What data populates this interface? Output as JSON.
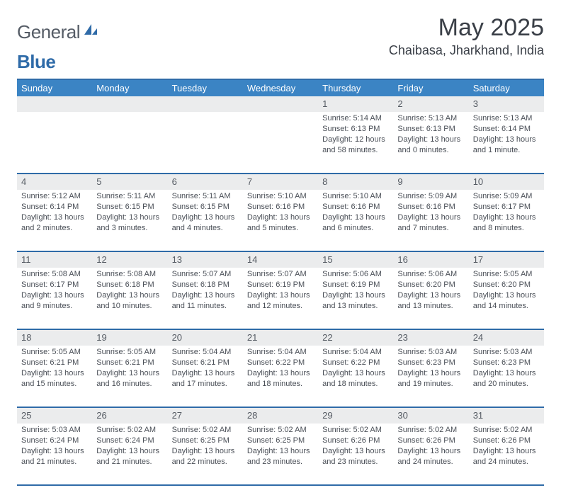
{
  "logo": {
    "part1": "General",
    "part2": "Blue"
  },
  "title": "May 2025",
  "location": "Chaibasa, Jharkhand, India",
  "colors": {
    "header_bg": "#3b84c4",
    "rule": "#2f6ba8",
    "daynum_bg": "#ebeced",
    "text": "#4a4f57",
    "title_text": "#3a3f47",
    "logo_gray": "#555c66"
  },
  "fonts": {
    "title_pt": 34,
    "location_pt": 18,
    "dayhead_pt": 13,
    "daynum_pt": 13,
    "info_pt": 11
  },
  "daynames": [
    "Sunday",
    "Monday",
    "Tuesday",
    "Wednesday",
    "Thursday",
    "Friday",
    "Saturday"
  ],
  "weeks": [
    [
      {
        "n": "",
        "sr": "",
        "ss": "",
        "dl": ""
      },
      {
        "n": "",
        "sr": "",
        "ss": "",
        "dl": ""
      },
      {
        "n": "",
        "sr": "",
        "ss": "",
        "dl": ""
      },
      {
        "n": "",
        "sr": "",
        "ss": "",
        "dl": ""
      },
      {
        "n": "1",
        "sr": "Sunrise: 5:14 AM",
        "ss": "Sunset: 6:13 PM",
        "dl": "Daylight: 12 hours and 58 minutes."
      },
      {
        "n": "2",
        "sr": "Sunrise: 5:13 AM",
        "ss": "Sunset: 6:13 PM",
        "dl": "Daylight: 13 hours and 0 minutes."
      },
      {
        "n": "3",
        "sr": "Sunrise: 5:13 AM",
        "ss": "Sunset: 6:14 PM",
        "dl": "Daylight: 13 hours and 1 minute."
      }
    ],
    [
      {
        "n": "4",
        "sr": "Sunrise: 5:12 AM",
        "ss": "Sunset: 6:14 PM",
        "dl": "Daylight: 13 hours and 2 minutes."
      },
      {
        "n": "5",
        "sr": "Sunrise: 5:11 AM",
        "ss": "Sunset: 6:15 PM",
        "dl": "Daylight: 13 hours and 3 minutes."
      },
      {
        "n": "6",
        "sr": "Sunrise: 5:11 AM",
        "ss": "Sunset: 6:15 PM",
        "dl": "Daylight: 13 hours and 4 minutes."
      },
      {
        "n": "7",
        "sr": "Sunrise: 5:10 AM",
        "ss": "Sunset: 6:16 PM",
        "dl": "Daylight: 13 hours and 5 minutes."
      },
      {
        "n": "8",
        "sr": "Sunrise: 5:10 AM",
        "ss": "Sunset: 6:16 PM",
        "dl": "Daylight: 13 hours and 6 minutes."
      },
      {
        "n": "9",
        "sr": "Sunrise: 5:09 AM",
        "ss": "Sunset: 6:16 PM",
        "dl": "Daylight: 13 hours and 7 minutes."
      },
      {
        "n": "10",
        "sr": "Sunrise: 5:09 AM",
        "ss": "Sunset: 6:17 PM",
        "dl": "Daylight: 13 hours and 8 minutes."
      }
    ],
    [
      {
        "n": "11",
        "sr": "Sunrise: 5:08 AM",
        "ss": "Sunset: 6:17 PM",
        "dl": "Daylight: 13 hours and 9 minutes."
      },
      {
        "n": "12",
        "sr": "Sunrise: 5:08 AM",
        "ss": "Sunset: 6:18 PM",
        "dl": "Daylight: 13 hours and 10 minutes."
      },
      {
        "n": "13",
        "sr": "Sunrise: 5:07 AM",
        "ss": "Sunset: 6:18 PM",
        "dl": "Daylight: 13 hours and 11 minutes."
      },
      {
        "n": "14",
        "sr": "Sunrise: 5:07 AM",
        "ss": "Sunset: 6:19 PM",
        "dl": "Daylight: 13 hours and 12 minutes."
      },
      {
        "n": "15",
        "sr": "Sunrise: 5:06 AM",
        "ss": "Sunset: 6:19 PM",
        "dl": "Daylight: 13 hours and 13 minutes."
      },
      {
        "n": "16",
        "sr": "Sunrise: 5:06 AM",
        "ss": "Sunset: 6:20 PM",
        "dl": "Daylight: 13 hours and 13 minutes."
      },
      {
        "n": "17",
        "sr": "Sunrise: 5:05 AM",
        "ss": "Sunset: 6:20 PM",
        "dl": "Daylight: 13 hours and 14 minutes."
      }
    ],
    [
      {
        "n": "18",
        "sr": "Sunrise: 5:05 AM",
        "ss": "Sunset: 6:21 PM",
        "dl": "Daylight: 13 hours and 15 minutes."
      },
      {
        "n": "19",
        "sr": "Sunrise: 5:05 AM",
        "ss": "Sunset: 6:21 PM",
        "dl": "Daylight: 13 hours and 16 minutes."
      },
      {
        "n": "20",
        "sr": "Sunrise: 5:04 AM",
        "ss": "Sunset: 6:21 PM",
        "dl": "Daylight: 13 hours and 17 minutes."
      },
      {
        "n": "21",
        "sr": "Sunrise: 5:04 AM",
        "ss": "Sunset: 6:22 PM",
        "dl": "Daylight: 13 hours and 18 minutes."
      },
      {
        "n": "22",
        "sr": "Sunrise: 5:04 AM",
        "ss": "Sunset: 6:22 PM",
        "dl": "Daylight: 13 hours and 18 minutes."
      },
      {
        "n": "23",
        "sr": "Sunrise: 5:03 AM",
        "ss": "Sunset: 6:23 PM",
        "dl": "Daylight: 13 hours and 19 minutes."
      },
      {
        "n": "24",
        "sr": "Sunrise: 5:03 AM",
        "ss": "Sunset: 6:23 PM",
        "dl": "Daylight: 13 hours and 20 minutes."
      }
    ],
    [
      {
        "n": "25",
        "sr": "Sunrise: 5:03 AM",
        "ss": "Sunset: 6:24 PM",
        "dl": "Daylight: 13 hours and 21 minutes."
      },
      {
        "n": "26",
        "sr": "Sunrise: 5:02 AM",
        "ss": "Sunset: 6:24 PM",
        "dl": "Daylight: 13 hours and 21 minutes."
      },
      {
        "n": "27",
        "sr": "Sunrise: 5:02 AM",
        "ss": "Sunset: 6:25 PM",
        "dl": "Daylight: 13 hours and 22 minutes."
      },
      {
        "n": "28",
        "sr": "Sunrise: 5:02 AM",
        "ss": "Sunset: 6:25 PM",
        "dl": "Daylight: 13 hours and 23 minutes."
      },
      {
        "n": "29",
        "sr": "Sunrise: 5:02 AM",
        "ss": "Sunset: 6:26 PM",
        "dl": "Daylight: 13 hours and 23 minutes."
      },
      {
        "n": "30",
        "sr": "Sunrise: 5:02 AM",
        "ss": "Sunset: 6:26 PM",
        "dl": "Daylight: 13 hours and 24 minutes."
      },
      {
        "n": "31",
        "sr": "Sunrise: 5:02 AM",
        "ss": "Sunset: 6:26 PM",
        "dl": "Daylight: 13 hours and 24 minutes."
      }
    ]
  ]
}
